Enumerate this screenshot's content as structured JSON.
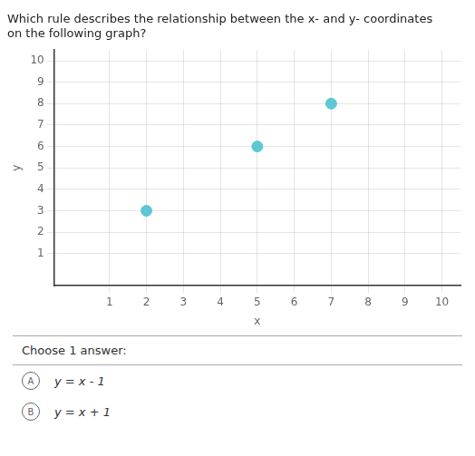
{
  "chart_data": {
    "type": "scatter",
    "title": "Which rule describes the relationship between the x- and y- coordinates\non the following graph?",
    "x": [
      2,
      5,
      7
    ],
    "values": [
      3,
      6,
      8
    ],
    "color": "#5bc8d4",
    "marker": "circle",
    "xlim": [
      -0.5,
      10.5
    ],
    "ylim": [
      -0.5,
      10.5
    ],
    "xticks": [
      1,
      2,
      3,
      4,
      5,
      6,
      7,
      8,
      9,
      10
    ],
    "yticks": [
      1,
      2,
      3,
      4,
      5,
      6,
      7,
      8,
      9,
      10
    ],
    "xlabel": "x",
    "ylabel": "y",
    "grid": true,
    "annotations": [
      "Choose 1 answer:",
      "A",
      "y = x - 1",
      "B",
      "y = x + 1"
    ]
  }
}
